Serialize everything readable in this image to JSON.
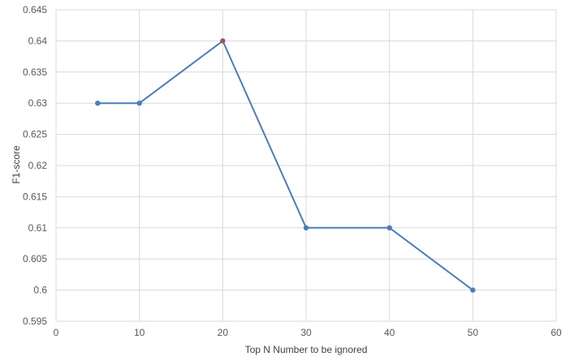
{
  "chart_data": {
    "type": "line",
    "xlabel": "Top N Number to be ignored",
    "ylabel": "F1-score",
    "xlim": [
      0,
      60
    ],
    "ylim": [
      0.595,
      0.645
    ],
    "x_ticks": [
      "0",
      "10",
      "20",
      "30",
      "40",
      "50",
      "60"
    ],
    "y_ticks": [
      "0.645",
      "0.64",
      "0.635",
      "0.63",
      "0.625",
      "0.62",
      "0.615",
      "0.61",
      "0.605",
      "0.6",
      "0.595"
    ],
    "grid": true,
    "series": [
      {
        "x": [
          5,
          10,
          20,
          30,
          40,
          50
        ],
        "y": [
          0.63,
          0.63,
          0.64,
          0.61,
          0.61,
          0.6
        ],
        "color": "#4a7ebb",
        "highlight_color": "#a0526d"
      }
    ]
  }
}
